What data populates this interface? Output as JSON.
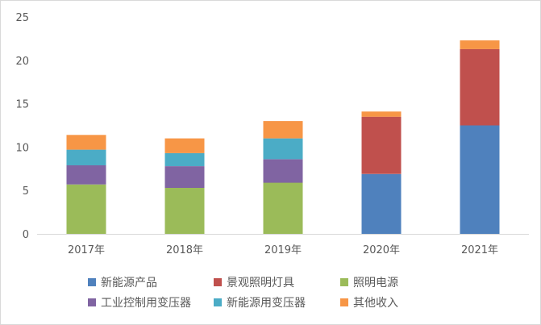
{
  "chart_data": {
    "type": "bar",
    "stacked": true,
    "categories": [
      "2017年",
      "2018年",
      "2019年",
      "2020年",
      "2021年"
    ],
    "series": [
      {
        "name": "新能源产品",
        "color": "#4f81bd",
        "values": [
          0,
          0,
          0,
          6.9,
          12.5
        ]
      },
      {
        "name": "景观照明灯具",
        "color": "#c0504d",
        "values": [
          0,
          0,
          0,
          6.6,
          8.8
        ]
      },
      {
        "name": "照明电源",
        "color": "#9bbb59",
        "values": [
          5.7,
          5.3,
          5.9,
          0,
          0
        ]
      },
      {
        "name": "工业控制用变压器",
        "color": "#8064a2",
        "values": [
          2.2,
          2.5,
          2.7,
          0,
          0
        ]
      },
      {
        "name": "新能源用变压器",
        "color": "#4bacc6",
        "values": [
          1.8,
          1.5,
          2.4,
          0,
          0
        ]
      },
      {
        "name": "其他收入",
        "color": "#f79646",
        "values": [
          1.7,
          1.7,
          2.0,
          0.6,
          1.0
        ]
      }
    ],
    "yticks": [
      0,
      5,
      10,
      15,
      20,
      25
    ],
    "ylim": [
      0,
      25
    ],
    "legend_position": "bottom",
    "grid": false
  }
}
